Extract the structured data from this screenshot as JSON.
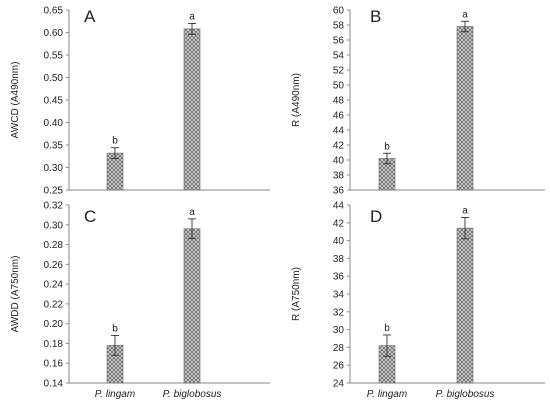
{
  "chart_data": [
    {
      "type": "bar",
      "panel": "A",
      "categories": [
        "P. lingam",
        "P. biglobosus"
      ],
      "values": [
        0.332,
        0.608
      ],
      "errors": [
        0.012,
        0.012
      ],
      "significance": [
        "b",
        "a"
      ],
      "ylabel": "AWCD (A490nm)",
      "ylim": [
        0.25,
        0.65
      ],
      "yticks": [
        "0.25",
        "0.30",
        "0.35",
        "0.40",
        "0.45",
        "0.50",
        "0.55",
        "0.60",
        "0.65"
      ],
      "show_category_labels": false
    },
    {
      "type": "bar",
      "panel": "B",
      "categories": [
        "P. lingam",
        "P. biglobosus"
      ],
      "values": [
        40.2,
        57.8
      ],
      "errors": [
        0.7,
        0.7
      ],
      "significance": [
        "b",
        "a"
      ],
      "ylabel": "R (A490nm)",
      "ylim": [
        36,
        60
      ],
      "yticks": [
        "36",
        "38",
        "40",
        "42",
        "44",
        "46",
        "48",
        "50",
        "52",
        "54",
        "56",
        "58",
        "60"
      ],
      "show_category_labels": false
    },
    {
      "type": "bar",
      "panel": "C",
      "categories": [
        "P. lingam",
        "P. biglobosus"
      ],
      "values": [
        0.178,
        0.296
      ],
      "errors": [
        0.01,
        0.01
      ],
      "significance": [
        "b",
        "a"
      ],
      "ylabel": "AWDD (A750nm)",
      "ylim": [
        0.14,
        0.32
      ],
      "yticks": [
        "0.14",
        "0.16",
        "0.18",
        "0.20",
        "0.22",
        "0.24",
        "0.26",
        "0.28",
        "0.30",
        "0.32"
      ],
      "show_category_labels": true
    },
    {
      "type": "bar",
      "panel": "D",
      "categories": [
        "P. lingam",
        "P. biglobosus"
      ],
      "values": [
        28.2,
        41.4
      ],
      "errors": [
        1.2,
        1.2
      ],
      "significance": [
        "b",
        "a"
      ],
      "ylabel": "R (A750nm)",
      "ylim": [
        24,
        44
      ],
      "yticks": [
        "24",
        "26",
        "28",
        "30",
        "32",
        "34",
        "36",
        "38",
        "40",
        "42",
        "44"
      ],
      "show_category_labels": true
    }
  ],
  "colors": {
    "axis": "#888888",
    "bar_fill": "#cfcfcf",
    "bar_hatch": "#555555",
    "error_bar": "#333333",
    "text": "#222222"
  }
}
